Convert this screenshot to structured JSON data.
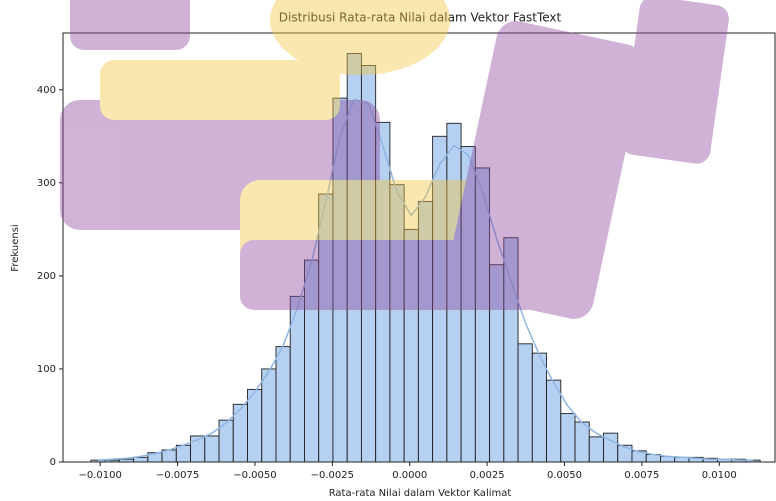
{
  "chart_data": {
    "type": "histogram",
    "title": "Distribusi Rata-rata Nilai dalam Vektor FastText",
    "xlabel": "Rata-rata Nilai dalam Vektor Kalimat",
    "ylabel": "Frekuensi",
    "bins": [
      -0.0103,
      -0.00984,
      -0.00938,
      -0.00892,
      -0.00846,
      -0.008,
      -0.00754,
      -0.00708,
      -0.00662,
      -0.00616,
      -0.0057,
      -0.00524,
      -0.00478,
      -0.00432,
      -0.00386,
      -0.0034,
      -0.00294,
      -0.00248,
      -0.00202,
      -0.00156,
      -0.0011,
      -0.00064,
      -0.00018,
      0.00028,
      0.00074,
      0.0012,
      0.00166,
      0.00212,
      0.00258,
      0.00304,
      0.0035,
      0.00396,
      0.00442,
      0.00488,
      0.00534,
      0.0058,
      0.00626,
      0.00672,
      0.00718,
      0.00764,
      0.0081,
      0.00856,
      0.00902,
      0.00948,
      0.00994,
      0.0104,
      0.01086,
      0.01132
    ],
    "values": [
      2,
      2,
      3,
      5,
      10,
      13,
      18,
      28,
      28,
      45,
      62,
      78,
      100,
      124,
      178,
      217,
      288,
      391,
      439,
      426,
      365,
      298,
      250,
      280,
      350,
      364,
      339,
      316,
      212,
      241,
      127,
      117,
      88,
      52,
      43,
      27,
      31,
      18,
      12,
      8,
      6,
      5,
      5,
      4,
      3,
      3,
      2
    ],
    "kde_x": [
      -0.01007,
      -0.00961,
      -0.00915,
      -0.00869,
      -0.00823,
      -0.00777,
      -0.00731,
      -0.00685,
      -0.00639,
      -0.00593,
      -0.00547,
      -0.00501,
      -0.00455,
      -0.00409,
      -0.00363,
      -0.00317,
      -0.00271,
      -0.00225,
      -0.00179,
      -0.00133,
      -0.00087,
      -0.00041,
      5e-05,
      0.00051,
      0.00097,
      0.00143,
      0.00189,
      0.00235,
      0.00281,
      0.00327,
      0.00373,
      0.00419,
      0.00465,
      0.00511,
      0.00557,
      0.00603,
      0.00649,
      0.00695,
      0.00741,
      0.00787,
      0.00833,
      0.00879,
      0.00925,
      0.00971,
      0.01017,
      0.01063,
      0.01109
    ],
    "kde_values": [
      2,
      3,
      4,
      6,
      9,
      13,
      18,
      24,
      31,
      42,
      57,
      75,
      97,
      125,
      165,
      215,
      280,
      350,
      390,
      385,
      340,
      290,
      265,
      285,
      320,
      340,
      330,
      290,
      240,
      195,
      150,
      115,
      85,
      60,
      42,
      31,
      23,
      16,
      11,
      8,
      6,
      5,
      4,
      3,
      3,
      2,
      2
    ],
    "color": "#a8c8ee",
    "edge_color": "#1f1f1f",
    "kde_color": "#8fb6e2",
    "xlim": [
      -0.0112,
      0.0118
    ],
    "ylim": [
      0,
      461
    ],
    "xticks": [
      {
        "value": -0.01,
        "label": "−0.0100"
      },
      {
        "value": -0.0075,
        "label": "−0.0075"
      },
      {
        "value": -0.005,
        "label": "−0.0050"
      },
      {
        "value": -0.0025,
        "label": "−0.0025"
      },
      {
        "value": 0,
        "label": "0.0000"
      },
      {
        "value": 0.0025,
        "label": "0.0025"
      },
      {
        "value": 0.005,
        "label": "0.0050"
      },
      {
        "value": 0.0075,
        "label": "0.0075"
      },
      {
        "value": 0.01,
        "label": "0.0100"
      }
    ],
    "yticks": [
      0,
      100,
      200,
      300,
      400
    ]
  }
}
